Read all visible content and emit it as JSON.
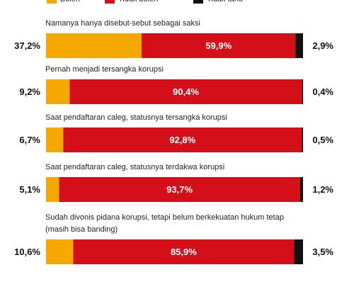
{
  "chart_data": {
    "type": "bar",
    "orientation": "horizontal",
    "stacked": true,
    "categories": [
      "Namanya hanya disebut-sebut sebagai saksi",
      "Pernah menjadi tersangka korupsi",
      "Saat pendaftaran caleg, statusnya tersangka korupsi",
      "Saat pendaftaran caleg, statusnya terdakwa korupsi",
      "Sudah divonis pidana korupsi, tetapi belum berkekuatan hukum tetap (masih bisa banding)"
    ],
    "series": [
      {
        "name": "Boleh",
        "color": "#f5a800",
        "values": [
          37.2,
          9.2,
          6.7,
          5.1,
          10.6
        ],
        "value_labels": [
          "37,2%",
          "9,2%",
          "6,7%",
          "5,1%",
          "10,6%"
        ]
      },
      {
        "name": "Tidak boleh",
        "color": "#d40f1a",
        "values": [
          59.9,
          90.4,
          92.8,
          93.7,
          85.9
        ],
        "value_labels": [
          "59,9%",
          "90,4%",
          "92,8%",
          "93,7%",
          "85,9%"
        ]
      },
      {
        "name": "Tidak tahu",
        "color": "#111111",
        "values": [
          2.9,
          0.4,
          0.5,
          1.2,
          3.5
        ],
        "value_labels": [
          "2,9%",
          "0,4%",
          "0,5%",
          "1,2%",
          "3,5%"
        ]
      }
    ],
    "legend": "top-left"
  }
}
